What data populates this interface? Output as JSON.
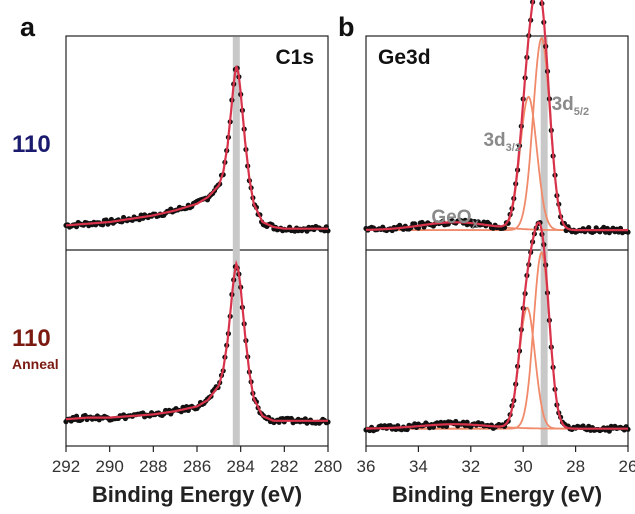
{
  "figure": {
    "panel_a_letter": "a",
    "panel_b_letter": "b",
    "row_top_label": "110",
    "row_bottom_label": "110",
    "row_bottom_sublabel": "Anneal",
    "row_top_color": "#1a1a6e",
    "row_bottom_color": "#7a1a10",
    "data_point_color": "#111111",
    "fit_color": "#d8334a",
    "component_color": "#f08a6a",
    "reference_line_color": "#c8c8c8"
  },
  "chart_data": [
    {
      "type": "line",
      "panel": "a",
      "title": "C1s",
      "xlabel": "Binding Energy (eV)",
      "ylabel": "",
      "xlim": [
        292,
        280
      ],
      "x_reversed": true,
      "xticks": [
        292,
        290,
        288,
        286,
        284,
        282,
        280
      ],
      "reference_line_x": 284.2,
      "peak_labels": [],
      "rows": [
        {
          "name": "110",
          "x": [
            292,
            291,
            290,
            289,
            288,
            287,
            286,
            285.5,
            285,
            284.8,
            284.6,
            284.4,
            284.3,
            284.2,
            284.1,
            284.0,
            283.8,
            283.6,
            283.4,
            283.0,
            282.5,
            282,
            281,
            280
          ],
          "y": [
            0.04,
            0.05,
            0.06,
            0.08,
            0.1,
            0.13,
            0.17,
            0.21,
            0.28,
            0.36,
            0.52,
            0.78,
            0.92,
            1.0,
            0.96,
            0.84,
            0.55,
            0.32,
            0.17,
            0.06,
            0.03,
            0.02,
            0.02,
            0.02
          ]
        },
        {
          "name": "110 Anneal",
          "x": [
            292,
            291,
            290,
            289,
            288,
            287,
            286,
            285.5,
            285,
            284.8,
            284.6,
            284.4,
            284.3,
            284.2,
            284.1,
            284.0,
            283.8,
            283.6,
            283.4,
            283.0,
            282.5,
            282,
            281,
            280
          ],
          "y": [
            0.03,
            0.04,
            0.04,
            0.05,
            0.06,
            0.08,
            0.11,
            0.15,
            0.24,
            0.34,
            0.52,
            0.8,
            0.93,
            1.0,
            0.96,
            0.85,
            0.56,
            0.32,
            0.16,
            0.05,
            0.02,
            0.02,
            0.02,
            0.02
          ]
        }
      ]
    },
    {
      "type": "line",
      "panel": "b",
      "title": "Ge3d",
      "xlabel": "Binding Energy (eV)",
      "ylabel": "",
      "xlim": [
        36,
        26
      ],
      "x_reversed": true,
      "xticks": [
        36,
        34,
        32,
        30,
        28,
        26
      ],
      "reference_line_x": 29.2,
      "peak_labels": [
        {
          "main": "GeO",
          "sub": "X",
          "x": 32.6
        },
        {
          "main": "3d",
          "sub": "3/2",
          "x": 30.8
        },
        {
          "main": "3d",
          "sub": "5/2",
          "x": 28.2
        }
      ],
      "rows": [
        {
          "name": "110",
          "components": [
            {
              "name": "GeOx",
              "center": 32.6,
              "width": 1.3,
              "height": 0.04
            },
            {
              "name": "3d3/2",
              "center": 29.8,
              "width": 0.32,
              "height": 0.68
            },
            {
              "name": "3d5/2",
              "center": 29.3,
              "width": 0.32,
              "height": 0.98
            }
          ],
          "baseline": 0.03
        },
        {
          "name": "110 Anneal",
          "components": [
            {
              "name": "GeOx",
              "center": 32.6,
              "width": 1.3,
              "height": 0.025
            },
            {
              "name": "3d3/2",
              "center": 29.85,
              "width": 0.3,
              "height": 0.68
            },
            {
              "name": "3d5/2",
              "center": 29.3,
              "width": 0.3,
              "height": 0.99
            }
          ],
          "baseline": 0.03
        }
      ]
    }
  ]
}
